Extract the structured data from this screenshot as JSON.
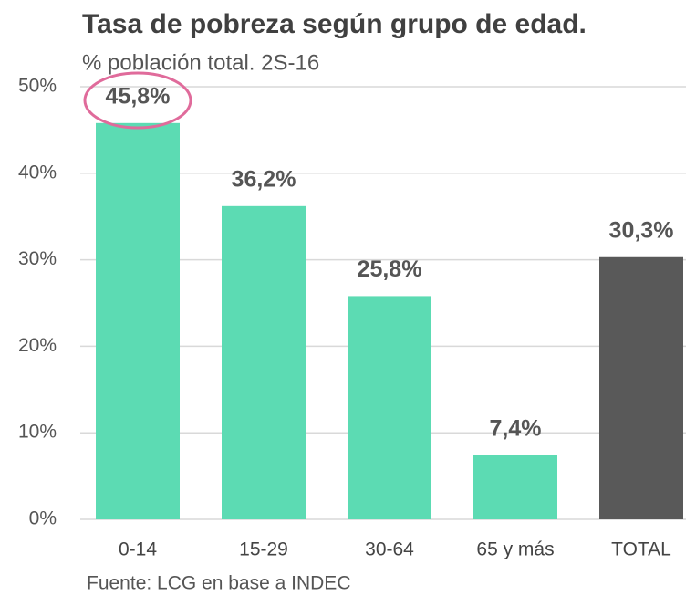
{
  "chart_data": {
    "type": "bar",
    "title": "Tasa de pobreza según grupo de edad.",
    "subtitle": "% población total. 2S-16",
    "source": "Fuente: LCG en base a INDEC",
    "categories": [
      "0-14",
      "15-29",
      "30-64",
      "65 y más",
      "TOTAL"
    ],
    "values": [
      45.8,
      36.2,
      25.8,
      7.4,
      30.3
    ],
    "value_labels": [
      "45,8%",
      "36,2%",
      "25,8%",
      "7,4%",
      "30,3%"
    ],
    "colors": [
      "#5cdbb3",
      "#5cdbb3",
      "#5cdbb3",
      "#5cdbb3",
      "#595959"
    ],
    "ylim": [
      0,
      50
    ],
    "yticks": [
      {
        "value": 0,
        "label": "0%"
      },
      {
        "value": 10,
        "label": "10%"
      },
      {
        "value": 20,
        "label": "20%"
      },
      {
        "value": 30,
        "label": "30%"
      },
      {
        "value": 40,
        "label": "40%"
      },
      {
        "value": 50,
        "label": "50%"
      }
    ],
    "grid": true
  }
}
